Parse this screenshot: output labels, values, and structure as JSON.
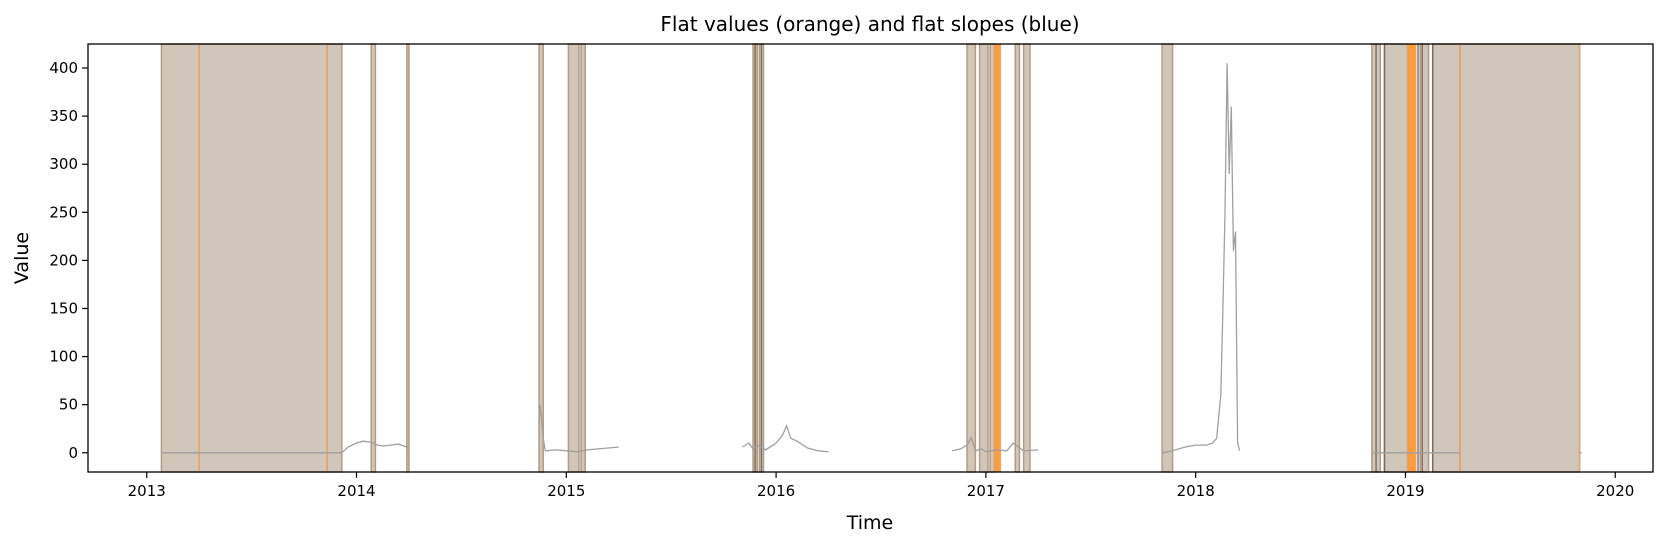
{
  "chart_data": {
    "type": "line",
    "title": "Flat values (orange) and flat slopes (blue)",
    "xlabel": "Time",
    "ylabel": "Value",
    "xlim": [
      2012.72,
      2020.18
    ],
    "ylim": [
      -20,
      425
    ],
    "x_ticks": [
      2013,
      2014,
      2015,
      2016,
      2017,
      2018,
      2019,
      2020
    ],
    "y_ticks": [
      0,
      50,
      100,
      150,
      200,
      250,
      300,
      350,
      400
    ],
    "grid": false,
    "colors": {
      "series": "#a0a0a0",
      "flat_slope_fill": "#d1c6ba",
      "flat_slope_edge": "#b29c86",
      "flat_value_edge": "#e8a66a",
      "flat_value_fill": "#ff8c1a",
      "dark_edge": "#6b5d52"
    },
    "flat_slope_regions": [
      [
        2013.07,
        2013.25
      ],
      [
        2013.25,
        2013.86
      ],
      [
        2013.86,
        2013.93
      ],
      [
        2014.07,
        2014.09
      ],
      [
        2014.24,
        2014.25
      ],
      [
        2014.87,
        2014.89
      ],
      [
        2015.01,
        2015.06
      ],
      [
        2015.07,
        2015.09
      ],
      [
        2015.89,
        2015.91
      ],
      [
        2015.92,
        2015.94
      ],
      [
        2016.91,
        2016.95
      ],
      [
        2016.97,
        2017.01
      ],
      [
        2017.02,
        2017.04
      ],
      [
        2017.14,
        2017.16
      ],
      [
        2017.18,
        2017.21
      ],
      [
        2017.84,
        2017.89
      ],
      [
        2018.84,
        2018.88
      ],
      [
        2018.9,
        2019.01
      ],
      [
        2019.07,
        2019.11
      ],
      [
        2019.13,
        2019.26
      ],
      [
        2019.26,
        2019.83
      ]
    ],
    "flat_value_regions": [
      [
        2017.04,
        2017.07
      ],
      [
        2019.01,
        2019.05
      ]
    ],
    "flat_value_edges": [
      2013.25,
      2013.86,
      2019.26,
      2019.83
    ],
    "dark_edges": [
      2015.9,
      2015.93,
      2018.86,
      2018.9,
      2019.06,
      2019.08,
      2019.13
    ],
    "segments": [
      {
        "x": [
          2013.07,
          2013.25,
          2013.5,
          2013.86,
          2013.93
        ],
        "y": [
          0,
          0,
          0,
          0,
          0
        ]
      },
      {
        "x": [
          2013.93,
          2013.96,
          2014.0,
          2014.03,
          2014.07,
          2014.1,
          2014.13,
          2014.16,
          2014.2,
          2014.25
        ],
        "y": [
          0,
          6,
          10,
          12,
          11,
          8,
          7,
          8,
          9,
          5
        ]
      },
      {
        "x": [
          2014.87,
          2014.875,
          2014.88,
          2014.885,
          2014.89,
          2014.9,
          2014.95,
          2015.0,
          2015.05,
          2015.1,
          2015.15,
          2015.2,
          2015.25
        ],
        "y": [
          30,
          50,
          40,
          28,
          15,
          2,
          3,
          2,
          1,
          3,
          4,
          5,
          6
        ]
      },
      {
        "x": [
          2015.84,
          2015.87,
          2015.89,
          2015.92,
          2015.95,
          2016.0,
          2016.03,
          2016.05,
          2016.07,
          2016.1,
          2016.15,
          2016.2,
          2016.25
        ],
        "y": [
          6,
          10,
          4,
          8,
          3,
          10,
          18,
          28,
          15,
          12,
          5,
          2,
          1
        ]
      },
      {
        "x": [
          2016.84,
          2016.88,
          2016.91,
          2016.93,
          2016.95,
          2016.98,
          2017.0,
          2017.05,
          2017.1,
          2017.13,
          2017.18,
          2017.25
        ],
        "y": [
          2,
          4,
          8,
          16,
          2,
          4,
          1,
          3,
          2,
          10,
          2,
          3
        ]
      },
      {
        "x": [
          2017.84,
          2017.89,
          2017.95,
          2018.0,
          2018.05,
          2018.08,
          2018.1,
          2018.12,
          2018.13,
          2018.14,
          2018.15,
          2018.16,
          2018.17,
          2018.18,
          2018.19,
          2018.2,
          2018.21
        ],
        "y": [
          0,
          2,
          6,
          8,
          8,
          10,
          15,
          60,
          150,
          250,
          405,
          290,
          360,
          210,
          230,
          10,
          2
        ]
      },
      {
        "x": [
          2018.84,
          2019.0,
          2019.13,
          2019.26
        ],
        "y": [
          0,
          0,
          0,
          0
        ]
      },
      {
        "x": [
          2019.83,
          2019.84
        ],
        "y": [
          0,
          0
        ]
      }
    ]
  }
}
